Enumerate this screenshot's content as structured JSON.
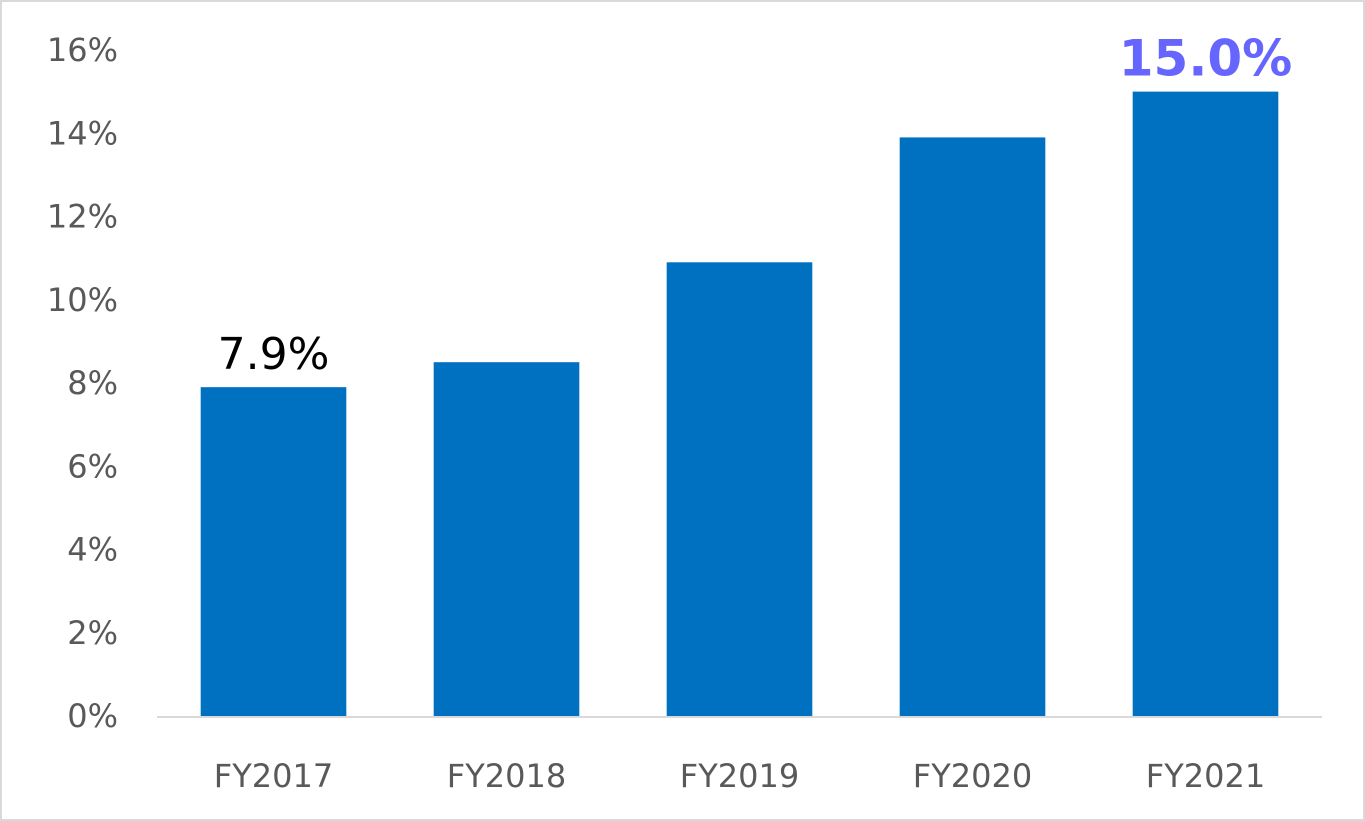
{
  "chart_data": {
    "type": "bar",
    "title": "",
    "xlabel": "",
    "ylabel": "",
    "categories": [
      "FY2017",
      "FY2018",
      "FY2019",
      "FY2020",
      "FY2021"
    ],
    "values": [
      7.9,
      8.5,
      10.9,
      13.9,
      15.0
    ],
    "ylim": [
      0,
      16
    ],
    "yticks": [
      "0%",
      "2%",
      "4%",
      "6%",
      "8%",
      "10%",
      "12%",
      "14%",
      "16%"
    ],
    "grid": false,
    "legend": "none",
    "bar_color": "#0070C0",
    "data_labels": [
      {
        "category": "FY2017",
        "text": "7.9%",
        "color": "#000000",
        "bold": false
      },
      {
        "category": "FY2021",
        "text": "15.0%",
        "color": "#6666FF",
        "bold": true
      }
    ]
  }
}
